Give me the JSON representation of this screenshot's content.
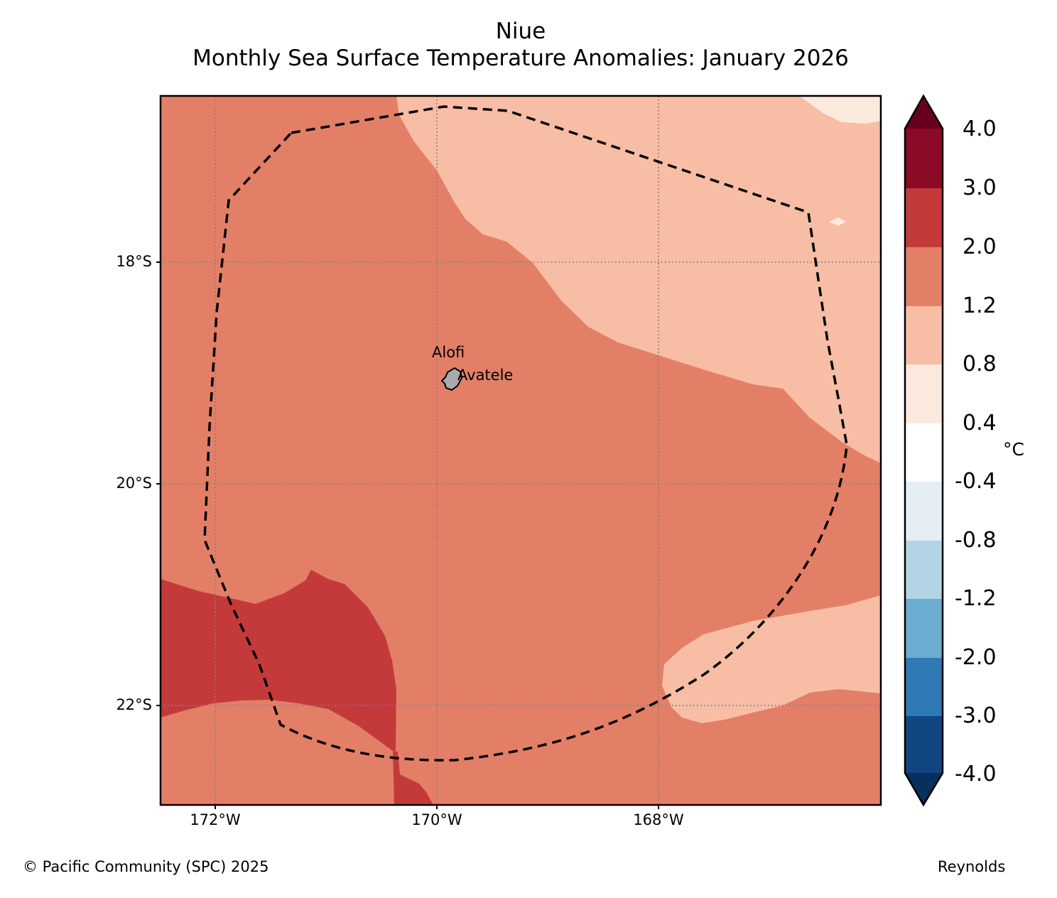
{
  "title": {
    "line1": "Niue",
    "line2": "Monthly Sea Surface Temperature Anomalies: January 2026"
  },
  "map": {
    "latitude_labels": [
      "18°S",
      "20°S",
      "22°S"
    ],
    "longitude_labels": [
      "172°W",
      "170°W",
      "168°W"
    ],
    "places": {
      "alofi": "Alofi",
      "avatele": "Avatele"
    },
    "boundary": "EEZ (dashed line)"
  },
  "colorbar": {
    "unit": "°C",
    "tick_labels": [
      "4.0",
      "3.0",
      "2.0",
      "1.2",
      "0.8",
      "0.4",
      "-0.4",
      "-0.8",
      "-1.2",
      "-2.0",
      "-3.0",
      "-4.0"
    ],
    "colors_top_to_bottom": [
      "#67001f",
      "#8b0a25",
      "#c43a3b",
      "#e47f67",
      "#f8bda5",
      "#fbe9de",
      "#ffffff",
      "#e5eef5",
      "#b3d4e6",
      "#6badd1",
      "#2f7ab6",
      "#124683",
      "#08305e"
    ]
  },
  "colors": {
    "anomaly_0_4_to_0_8": "#fbe9de",
    "anomaly_0_8_to_1_2": "#f8bda5",
    "anomaly_1_2_to_2_0": "#e47f67",
    "anomaly_2_0_to_3_0": "#c43a3b",
    "land": "#aaaaaa"
  },
  "footer": {
    "copyright": "© Pacific Community (SPC) 2025",
    "source": "Reynolds"
  }
}
